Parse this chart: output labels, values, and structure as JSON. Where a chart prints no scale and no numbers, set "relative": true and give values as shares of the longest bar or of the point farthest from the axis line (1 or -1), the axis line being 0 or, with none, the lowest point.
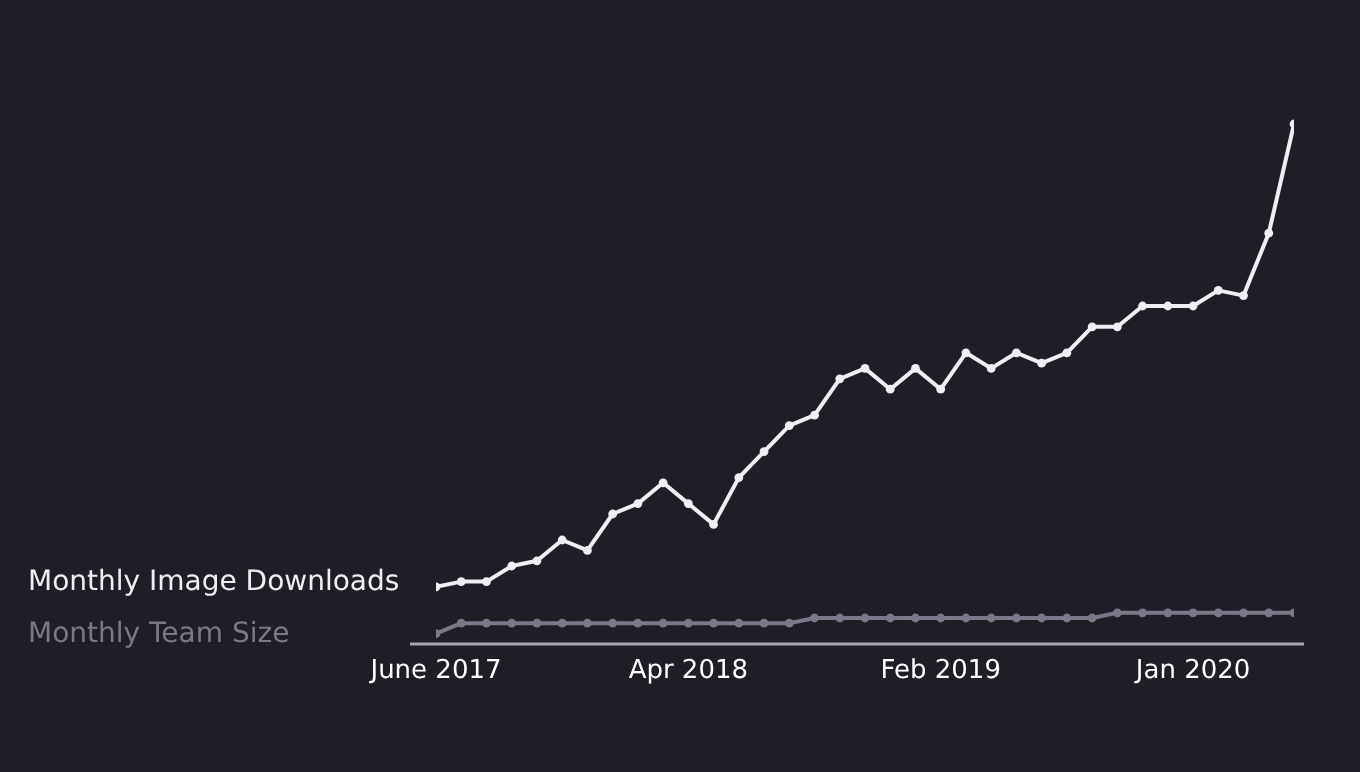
{
  "chart_data": {
    "type": "line",
    "relative": true,
    "categories": [
      "June 2017",
      null,
      null,
      null,
      null,
      null,
      null,
      null,
      null,
      null,
      "Apr 2018",
      null,
      null,
      null,
      null,
      null,
      null,
      null,
      null,
      null,
      "Feb 2019",
      null,
      null,
      null,
      null,
      null,
      null,
      null,
      null,
      null,
      "Jan 2020",
      null,
      null,
      null,
      null
    ],
    "series": [
      {
        "name": "Monthly Image Downloads",
        "color": "#f0eef4",
        "values": [
          0.11,
          0.12,
          0.12,
          0.15,
          0.16,
          0.2,
          0.18,
          0.25,
          0.27,
          0.31,
          0.27,
          0.23,
          0.32,
          0.37,
          0.42,
          0.44,
          0.51,
          0.53,
          0.49,
          0.53,
          0.49,
          0.56,
          0.53,
          0.56,
          0.54,
          0.56,
          0.61,
          0.61,
          0.65,
          0.65,
          0.65,
          0.68,
          0.67,
          0.79,
          1
        ]
      },
      {
        "name": "Monthly Team Size",
        "color": "#7a7889",
        "values": [
          0.02,
          0.04,
          0.04,
          0.04,
          0.04,
          0.04,
          0.04,
          0.04,
          0.04,
          0.04,
          0.04,
          0.04,
          0.04,
          0.04,
          0.04,
          0.05,
          0.05,
          0.05,
          0.05,
          0.05,
          0.05,
          0.05,
          0.05,
          0.05,
          0.05,
          0.05,
          0.05,
          0.06,
          0.06,
          0.06,
          0.06,
          0.06,
          0.06,
          0.06,
          0.06
        ]
      }
    ],
    "legend": "left",
    "marker": "circle",
    "line_style": "solid"
  }
}
